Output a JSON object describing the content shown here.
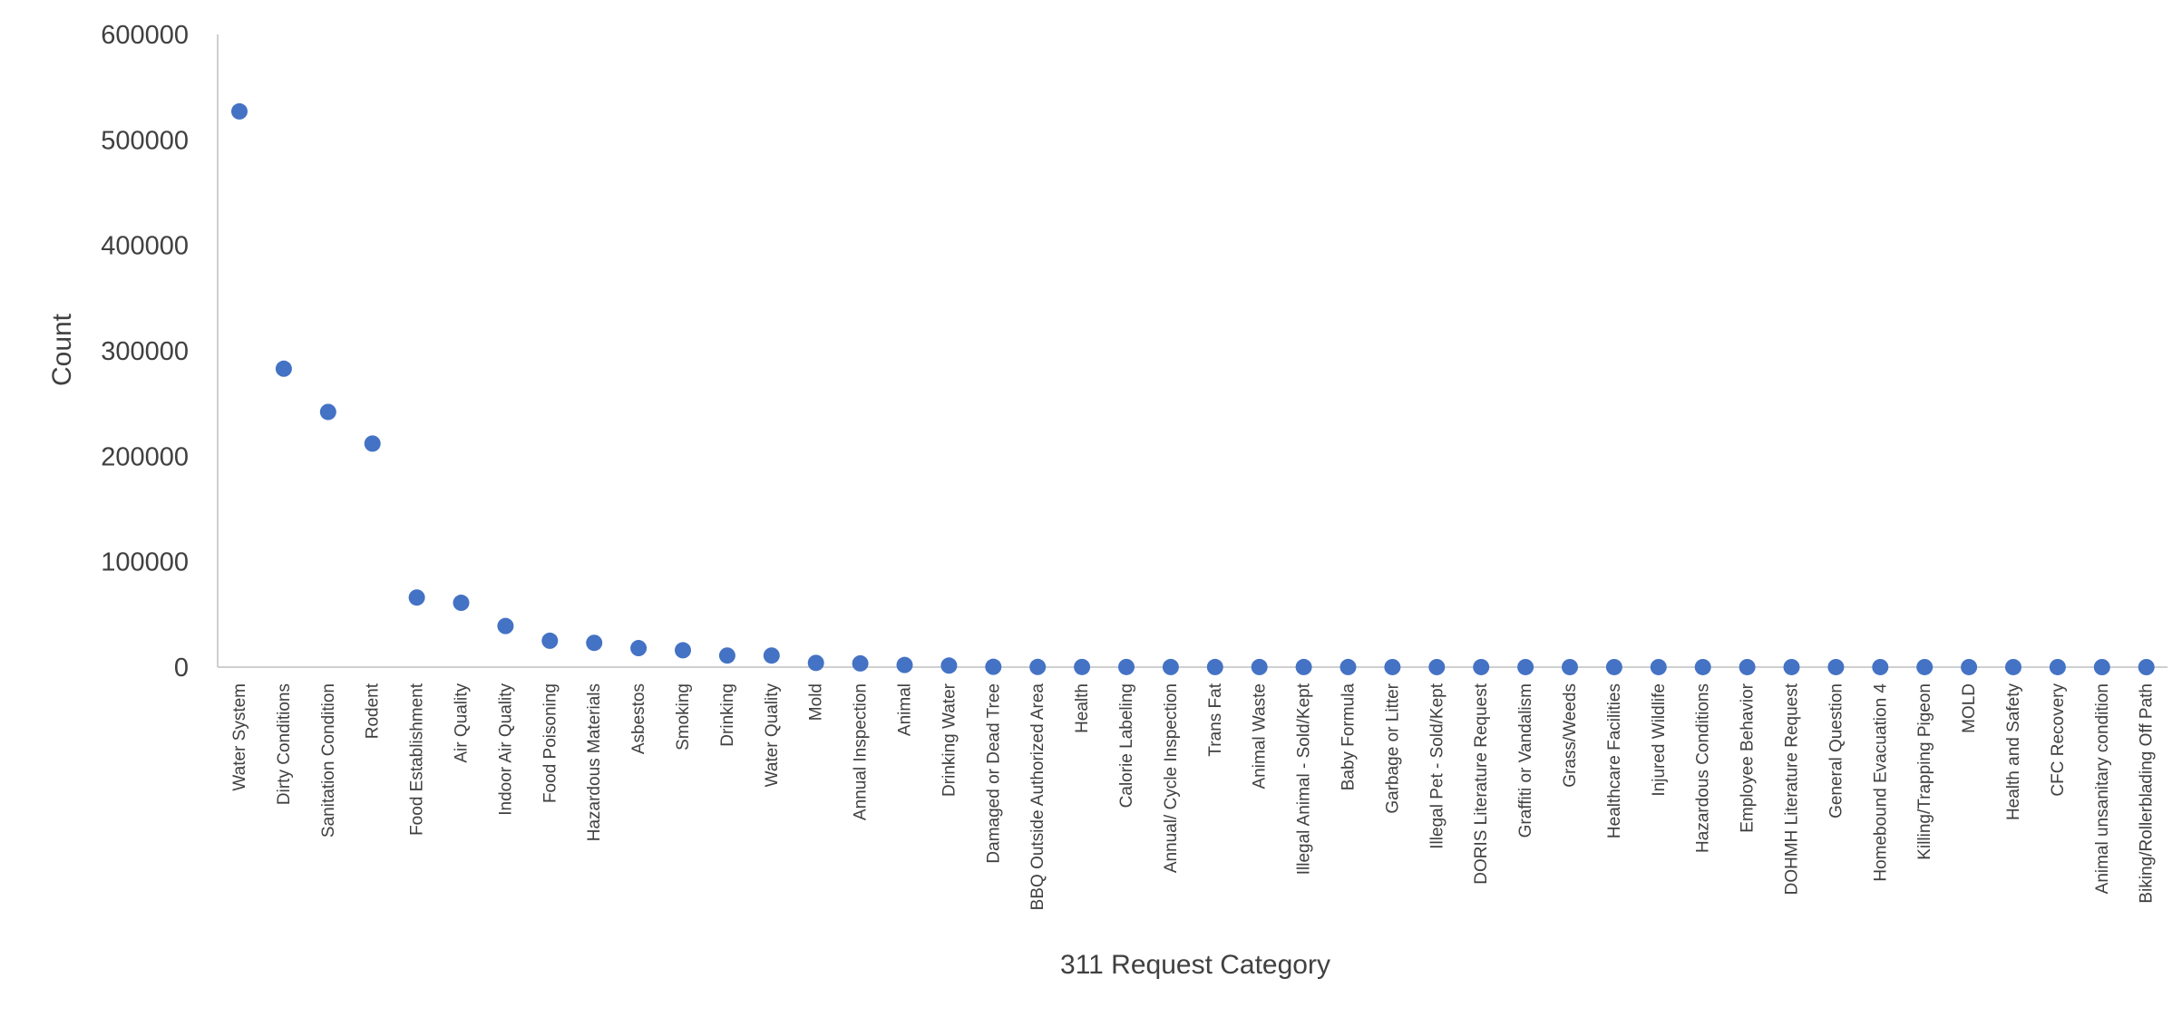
{
  "chart_data": {
    "type": "scatter",
    "title": "",
    "xlabel": "311 Request Category",
    "ylabel": "Count",
    "ylim": [
      0,
      600000
    ],
    "yticks": [
      "0",
      "100000",
      "200000",
      "300000",
      "400000",
      "500000",
      "600000"
    ],
    "grid": false,
    "legend": "none",
    "marker_color": "#4472c4",
    "categories": [
      "Water System",
      "Dirty Conditions",
      "Sanitation Condition",
      "Rodent",
      "Food Establishment",
      "Air Quality",
      "Indoor Air Quality",
      "Food Poisoning",
      "Hazardous Materials",
      "Asbestos",
      "Smoking",
      "Drinking",
      "Water Quality",
      "Mold",
      "Annual Inspection",
      "Animal",
      "Drinking Water",
      "Damaged or Dead Tree",
      "BBQ Outside Authorized Area",
      "Health",
      "Calorie Labeling",
      "Annual/ Cycle Inspection",
      "Trans Fat",
      "Animal Waste",
      "Illegal Animal - Sold/Kept",
      "Baby Formula",
      "Garbage or Litter",
      "Illegal Pet - Sold/Kept",
      "DORIS Literature Request",
      "Graffiti or Vandalism",
      "Grass/Weeds",
      "Healthcare Facilities",
      "Injured Wildlife",
      "Hazardous Conditions",
      "Employee Behavior",
      "DOHMH Literature Request",
      "General Question",
      "Homebound Evacuation 4",
      "Killing/Trapping Pigeon",
      "MOLD",
      "Health and Safety",
      "CFC Recovery",
      "Animal unsanitary condition",
      "Biking/Rollerblading Off Path"
    ],
    "values": [
      527000,
      283000,
      242000,
      212000,
      66000,
      61000,
      39000,
      25000,
      23000,
      18000,
      16000,
      11000,
      11000,
      4000,
      3500,
      2000,
      1500,
      300,
      200,
      150,
      120,
      100,
      90,
      80,
      70,
      60,
      50,
      45,
      40,
      35,
      30,
      25,
      20,
      18,
      15,
      12,
      10,
      8,
      6,
      5,
      4,
      3,
      2,
      1
    ]
  }
}
